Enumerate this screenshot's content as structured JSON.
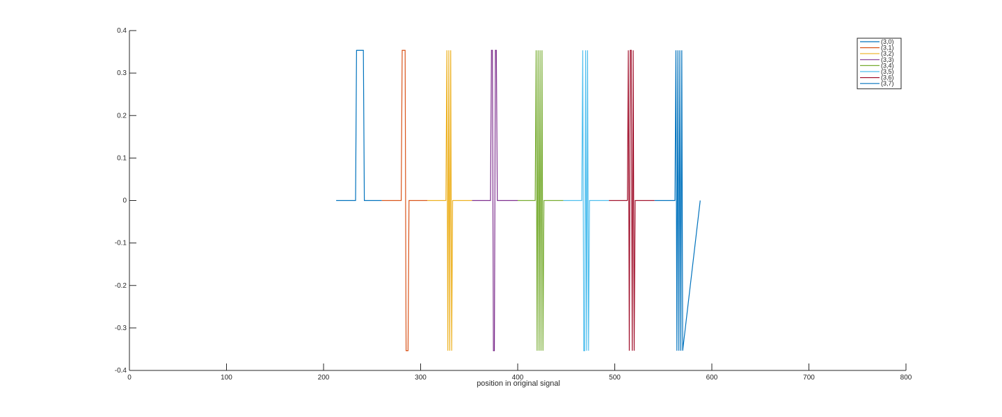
{
  "chart_data": {
    "type": "line",
    "title": "",
    "xlabel": "position in original signal",
    "ylabel": "",
    "xlim": [
      0,
      800
    ],
    "ylim": [
      -0.4,
      0.4
    ],
    "xticks": [
      0,
      100,
      200,
      300,
      400,
      500,
      600,
      700,
      800
    ],
    "yticks": [
      -0.4,
      -0.3,
      -0.2,
      -0.1,
      0,
      0.1,
      0.2,
      0.3,
      0.4
    ],
    "grid": false,
    "legend_position": "top-right",
    "series": [
      {
        "name": "(3,0)",
        "color": "#0072BD",
        "x": [
          213,
          233,
          234,
          241,
          242,
          260
        ],
        "y": [
          0,
          0,
          0.3536,
          0.3536,
          0,
          0
        ]
      },
      {
        "name": "(3,1)",
        "color": "#D95319",
        "x": [
          260,
          280,
          281,
          284,
          285,
          287,
          288,
          290,
          307
        ],
        "y": [
          0,
          0,
          0.3536,
          0.3536,
          -0.3536,
          -0.3536,
          0,
          0,
          0
        ]
      },
      {
        "name": "(3,2)",
        "color": "#EDB120",
        "x": [
          307,
          326,
          327,
          328,
          329,
          330,
          331,
          332,
          333,
          353
        ],
        "y": [
          0,
          0,
          0.3536,
          -0.3536,
          0.3536,
          -0.3536,
          0.3536,
          -0.3536,
          0,
          0
        ]
      },
      {
        "name": "(3,3)",
        "color": "#7E2F8E",
        "x": [
          353,
          372,
          373,
          374,
          375,
          376,
          377,
          378,
          379,
          400
        ],
        "y": [
          0,
          0,
          0.3536,
          0.3536,
          -0.3536,
          -0.3536,
          0.3536,
          0.3536,
          0,
          0
        ]
      },
      {
        "name": "(3,4)",
        "color": "#77AC30",
        "x": [
          400,
          418,
          419,
          420,
          421,
          422,
          423,
          424,
          425,
          426,
          427,
          447
        ],
        "y": [
          0,
          0,
          0.3536,
          -0.3536,
          0.3536,
          -0.3536,
          0.3536,
          -0.3536,
          0.3536,
          -0.3536,
          0,
          0
        ]
      },
      {
        "name": "(3,5)",
        "color": "#4DBEEE",
        "x": [
          447,
          466,
          467,
          468,
          469,
          470,
          471,
          472,
          473,
          474,
          494
        ],
        "y": [
          0,
          0,
          0.3536,
          -0.3536,
          -0.3536,
          0.3536,
          -0.3536,
          0.3536,
          -0.3536,
          0,
          0
        ]
      },
      {
        "name": "(3,6)",
        "color": "#A2142F",
        "x": [
          494,
          513,
          514,
          515,
          516,
          517,
          518,
          519,
          520,
          521,
          541
        ],
        "y": [
          0,
          0,
          0.3536,
          -0.3536,
          0.3536,
          0.3536,
          -0.3536,
          0.3536,
          -0.3536,
          0,
          0
        ]
      },
      {
        "name": "(3,7)",
        "color": "#0072BD",
        "x": [
          541,
          562,
          563,
          564,
          565,
          566,
          567,
          568,
          569,
          570,
          588
        ],
        "y": [
          0,
          0,
          0.3536,
          -0.3536,
          0.3536,
          -0.3536,
          0.3536,
          -0.3536,
          0.3536,
          -0.3536,
          0
        ]
      }
    ]
  }
}
